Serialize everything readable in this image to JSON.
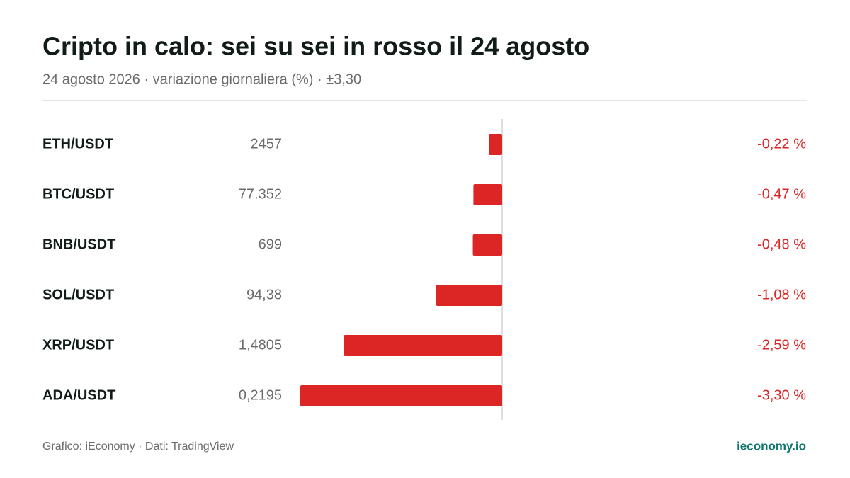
{
  "chart_data": {
    "type": "bar",
    "orientation": "horizontal",
    "title": "Cripto in calo: sei su sei in rosso il 24 agosto",
    "subtitle": "24 agosto 2026 · variazione giornaliera (%) · ±3,30",
    "categories": [
      "ETH/USDT",
      "BTC/USDT",
      "BNB/USDT",
      "SOL/USDT",
      "XRP/USDT",
      "ADA/USDT"
    ],
    "prices": [
      "2457",
      "77.352",
      "699",
      "94,38",
      "1,4805",
      "0,2195"
    ],
    "values": [
      -0.22,
      -0.47,
      -0.48,
      -1.08,
      -2.59,
      -3.3
    ],
    "value_labels": [
      "-0,22 %",
      "-0,47 %",
      "-0,48 %",
      "-1,08 %",
      "-2,59 %",
      "-3,30 %"
    ],
    "color": "#dc2626",
    "xlim": [
      -3.3,
      3.3
    ],
    "source": "Grafico: iEconomy · Dati: TradingView",
    "brand": "ieconomy.io"
  }
}
